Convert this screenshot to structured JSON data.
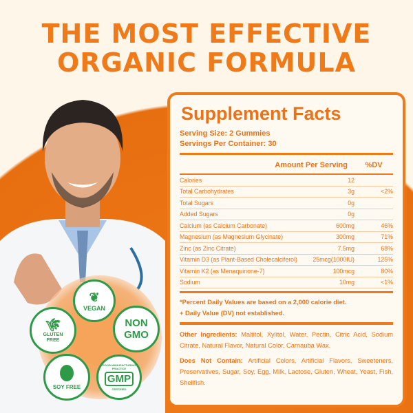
{
  "headline": {
    "line1": "THE MOST EFFECTIVE",
    "line2": "ORGANIC FORMULA"
  },
  "facts": {
    "title": "Supplement Facts",
    "serving_size": "Serving Size: 2 Gummies",
    "servings_per_container": "Servings Per Container: 30",
    "col_amount": "Amount Per Serving",
    "col_dv": "%DV",
    "rows": [
      {
        "name": "Calories",
        "amount": "12",
        "dv": ""
      },
      {
        "name": "Total Carbohydrates",
        "amount": "3g",
        "dv": "<2%"
      },
      {
        "name": "Total Sugars",
        "amount": "0g",
        "dv": ""
      },
      {
        "name": "Added Sugars",
        "amount": "0g",
        "dv": ""
      },
      {
        "name": "Calcium (as Calcium Carbonate)",
        "amount": "600mg",
        "dv": "46%"
      },
      {
        "name": "Magnesium (as Magnesium Glycinate)",
        "amount": "300mg",
        "dv": "71%"
      },
      {
        "name": "Zinc (as Zinc Citrate)",
        "amount": "7.5mg",
        "dv": "68%"
      },
      {
        "name": "Vitamin D3 (as Plant-Based Cholecalciferol)",
        "amount": "25mcg(1000IU)",
        "dv": "125%"
      },
      {
        "name": "Vitamin K2 (as Menaquinone-7)",
        "amount": "100mcg",
        "dv": "80%"
      },
      {
        "name": "Sodium",
        "amount": "10mg",
        "dv": "<1%"
      }
    ],
    "footnote1": "*Percent Daily Values are based on a 2,000 calorie diet.",
    "footnote2": "+ Daily Value (DV) not established.",
    "other_label": "Other Ingredients:",
    "other_text": " Maltitol, Xylitol, Water, Pectin, Citric Acid, Sodium Citrate, Natural Flavor, Natural Color, Carnauba Wax.",
    "dnc_label": "Does Not Contain:",
    "dnc_text": " Artificial Colors, Artificial Flavors, Sweeteners, Preservatives, Sugar, Soy, Egg, Milk, Lactose, Gluten, Wheat, Yeast, Fish, Shellfish."
  },
  "badges": {
    "vegan": "VEGAN",
    "non": "NON",
    "gmo": "GMO",
    "gluten": "GLUTEN",
    "free": "FREE",
    "soy": "SOY FREE",
    "gmp": "GMP",
    "gmp_ring": "GOOD MANUFACTURING PRACTICE",
    "gmp_cert": "CERTIFIED"
  },
  "colors": {
    "accent": "#ee7a1a",
    "badge_green": "#2e9a48",
    "background": "#fdf6e9"
  }
}
